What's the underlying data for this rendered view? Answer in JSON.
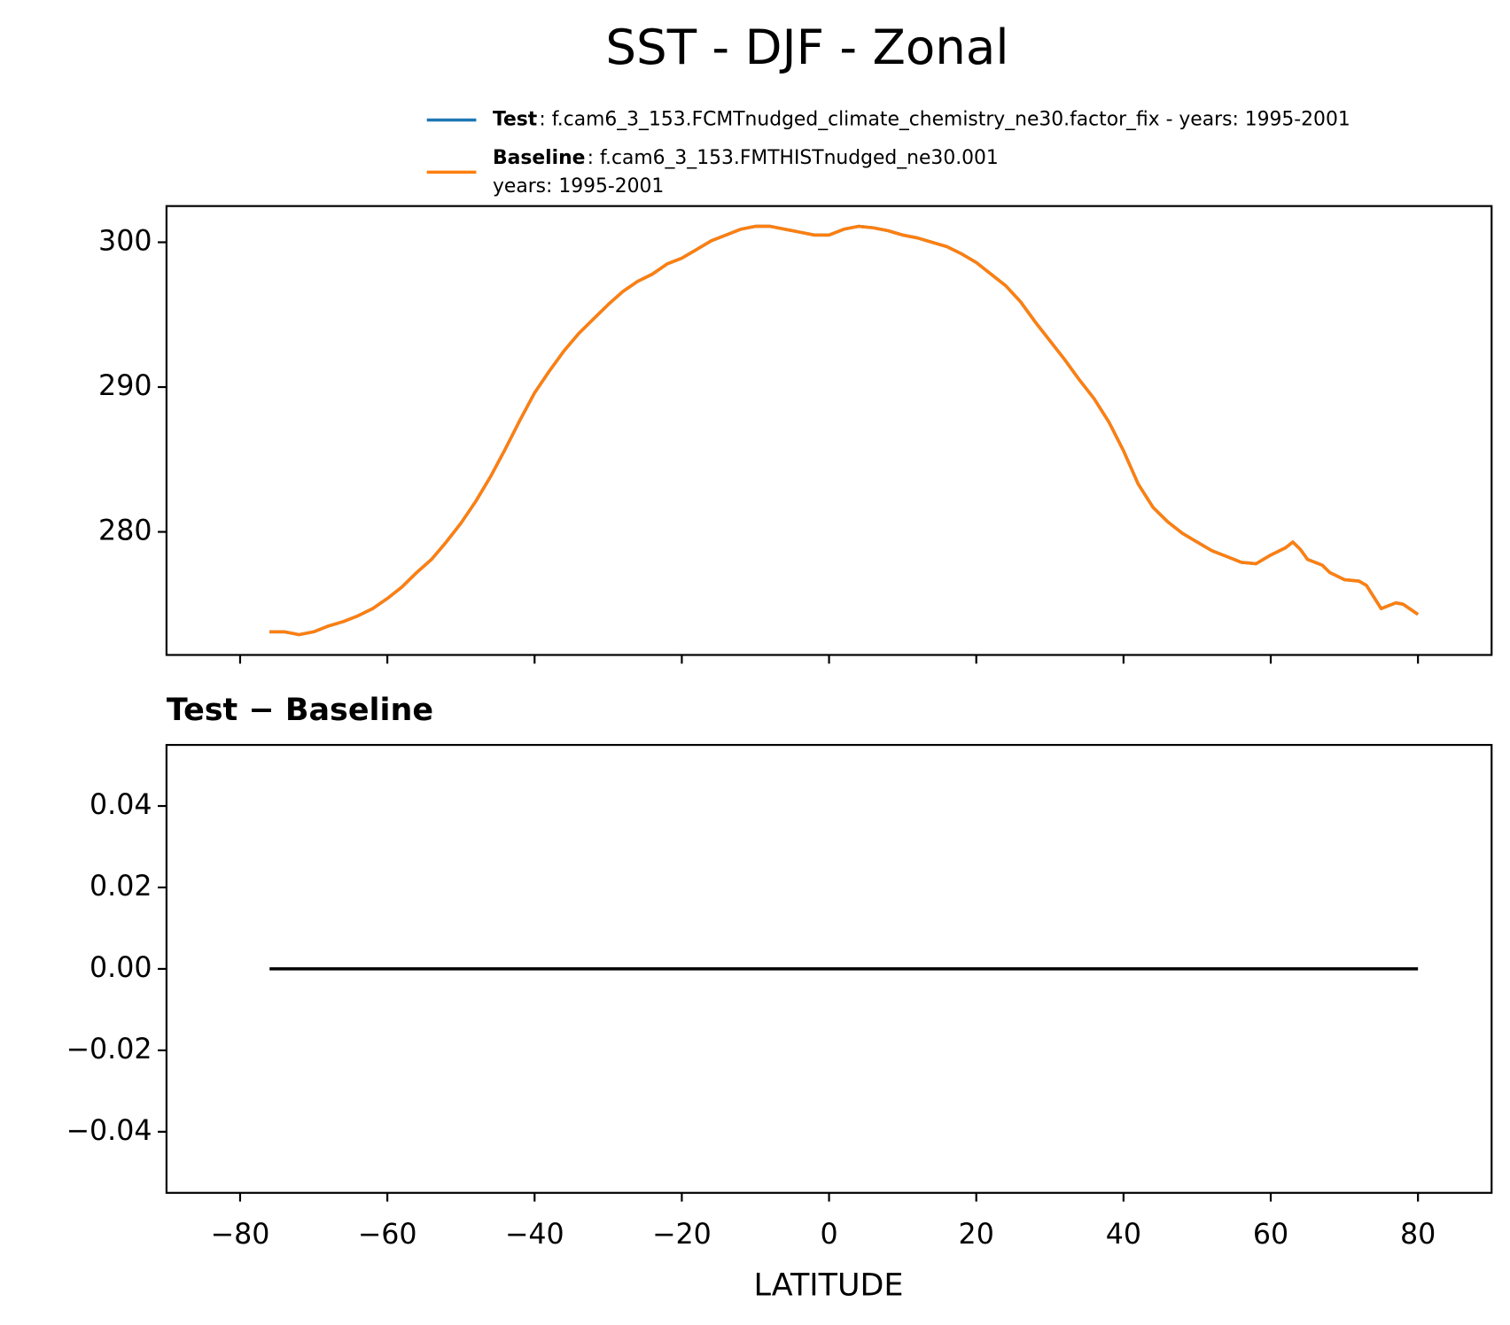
{
  "chart_data": [
    {
      "type": "line",
      "title": "SST - DJF - Zonal",
      "x": [
        -76,
        -74,
        -72,
        -70,
        -68,
        -66,
        -64,
        -62,
        -60,
        -58,
        -56,
        -54,
        -52,
        -50,
        -48,
        -46,
        -44,
        -42,
        -40,
        -38,
        -36,
        -34,
        -32,
        -30,
        -28,
        -26,
        -24,
        -22,
        -20,
        -18,
        -16,
        -14,
        -12,
        -10,
        -8,
        -6,
        -4,
        -2,
        0,
        2,
        4,
        6,
        8,
        10,
        12,
        14,
        16,
        18,
        20,
        22,
        24,
        26,
        28,
        30,
        32,
        34,
        36,
        38,
        40,
        42,
        44,
        46,
        48,
        50,
        52,
        54,
        56,
        58,
        60,
        62,
        63,
        64,
        65,
        67,
        68,
        70,
        72,
        73,
        75,
        77,
        78,
        80
      ],
      "series": [
        {
          "name": "Test",
          "description": [
            ": f.cam6_3_153.FCMTnudged_climate_chemistry_ne30.factor_fix - years: 1995-2001"
          ],
          "color": "#1f77b4",
          "values": [
            273.1,
            273.1,
            272.9,
            273.1,
            273.5,
            273.8,
            274.2,
            274.7,
            275.4,
            276.2,
            277.2,
            278.1,
            279.3,
            280.6,
            282.1,
            283.8,
            285.7,
            287.7,
            289.6,
            291.1,
            292.5,
            293.7,
            294.7,
            295.7,
            296.6,
            297.3,
            297.8,
            298.5,
            298.9,
            299.5,
            300.1,
            300.5,
            300.9,
            301.1,
            301.1,
            300.9,
            300.7,
            300.5,
            300.5,
            300.9,
            301.1,
            301.0,
            300.8,
            300.5,
            300.3,
            300.0,
            299.7,
            299.2,
            298.6,
            297.8,
            297.0,
            295.9,
            294.5,
            293.2,
            291.9,
            290.5,
            289.2,
            287.6,
            285.6,
            283.3,
            281.7,
            280.7,
            279.9,
            279.3,
            278.7,
            278.3,
            277.9,
            277.8,
            278.4,
            278.9,
            279.3,
            278.8,
            278.1,
            277.7,
            277.2,
            276.7,
            276.6,
            276.3,
            274.7,
            275.1,
            275.0,
            274.3
          ]
        },
        {
          "name": "Baseline",
          "description": [
            ": f.cam6_3_153.FMTHISTnudged_ne30.001",
            "years: 1995-2001"
          ],
          "color": "#ff7f0e",
          "values": [
            273.1,
            273.1,
            272.9,
            273.1,
            273.5,
            273.8,
            274.2,
            274.7,
            275.4,
            276.2,
            277.2,
            278.1,
            279.3,
            280.6,
            282.1,
            283.8,
            285.7,
            287.7,
            289.6,
            291.1,
            292.5,
            293.7,
            294.7,
            295.7,
            296.6,
            297.3,
            297.8,
            298.5,
            298.9,
            299.5,
            300.1,
            300.5,
            300.9,
            301.1,
            301.1,
            300.9,
            300.7,
            300.5,
            300.5,
            300.9,
            301.1,
            301.0,
            300.8,
            300.5,
            300.3,
            300.0,
            299.7,
            299.2,
            298.6,
            297.8,
            297.0,
            295.9,
            294.5,
            293.2,
            291.9,
            290.5,
            289.2,
            287.6,
            285.6,
            283.3,
            281.7,
            280.7,
            279.9,
            279.3,
            278.7,
            278.3,
            277.9,
            277.8,
            278.4,
            278.9,
            279.3,
            278.8,
            278.1,
            277.7,
            277.2,
            276.7,
            276.6,
            276.3,
            274.7,
            275.1,
            275.0,
            274.3
          ]
        }
      ],
      "xlim": [
        -90,
        90
      ],
      "xticks": [
        -80,
        -60,
        -40,
        -20,
        0,
        20,
        40,
        60,
        80
      ],
      "ylim": [
        271.5,
        302.5
      ],
      "yticks": [
        280,
        290,
        300
      ]
    },
    {
      "type": "line",
      "title": "Test − Baseline",
      "xlabel": "LATITUDE",
      "x": [
        -76,
        -74,
        -72,
        -70,
        -68,
        -66,
        -64,
        -62,
        -60,
        -58,
        -56,
        -54,
        -52,
        -50,
        -48,
        -46,
        -44,
        -42,
        -40,
        -38,
        -36,
        -34,
        -32,
        -30,
        -28,
        -26,
        -24,
        -22,
        -20,
        -18,
        -16,
        -14,
        -12,
        -10,
        -8,
        -6,
        -4,
        -2,
        0,
        2,
        4,
        6,
        8,
        10,
        12,
        14,
        16,
        18,
        20,
        22,
        24,
        26,
        28,
        30,
        32,
        34,
        36,
        38,
        40,
        42,
        44,
        46,
        48,
        50,
        52,
        54,
        56,
        58,
        60,
        62,
        63,
        64,
        65,
        67,
        68,
        70,
        72,
        73,
        75,
        77,
        78,
        80
      ],
      "series": [
        {
          "color": "#000000",
          "values": [
            0,
            0,
            0,
            0,
            0,
            0,
            0,
            0,
            0,
            0,
            0,
            0,
            0,
            0,
            0,
            0,
            0,
            0,
            0,
            0,
            0,
            0,
            0,
            0,
            0,
            0,
            0,
            0,
            0,
            0,
            0,
            0,
            0,
            0,
            0,
            0,
            0,
            0,
            0,
            0,
            0,
            0,
            0,
            0,
            0,
            0,
            0,
            0,
            0,
            0,
            0,
            0,
            0,
            0,
            0,
            0,
            0,
            0,
            0,
            0,
            0,
            0,
            0,
            0,
            0,
            0,
            0,
            0,
            0,
            0,
            0,
            0,
            0,
            0,
            0,
            0,
            0,
            0,
            0,
            0,
            0,
            0
          ]
        }
      ],
      "xlim": [
        -90,
        90
      ],
      "xticks": [
        {
          "value": -80,
          "label": "−80"
        },
        {
          "value": -60,
          "label": "−60"
        },
        {
          "value": -40,
          "label": "−40"
        },
        {
          "value": -20,
          "label": "−20"
        },
        0,
        20,
        40,
        60,
        80
      ],
      "ylim": [
        -0.055,
        0.055
      ],
      "yticks": [
        {
          "value": -0.04,
          "label": "−0.04"
        },
        {
          "value": -0.02,
          "label": "−0.02"
        },
        {
          "value": 0,
          "label": "0.00"
        },
        0.02,
        0.04
      ]
    }
  ]
}
